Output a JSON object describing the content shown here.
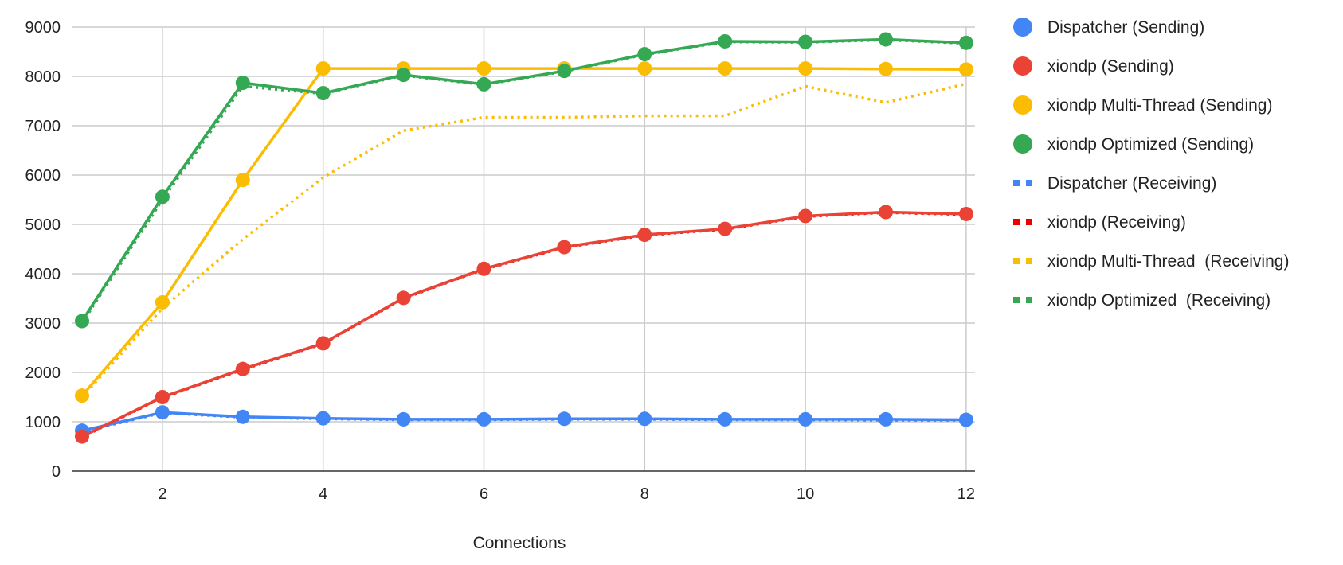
{
  "chart_data": {
    "type": "line",
    "title": "",
    "xlabel": "Connections",
    "ylabel": "",
    "xlim": [
      1,
      12
    ],
    "ylim": [
      0,
      9000
    ],
    "x_ticks": [
      2,
      4,
      6,
      8,
      10,
      12
    ],
    "y_ticks": [
      0,
      1000,
      2000,
      3000,
      4000,
      5000,
      6000,
      7000,
      8000,
      9000
    ],
    "grid": true,
    "legend_position": "right",
    "x": [
      1,
      2,
      3,
      4,
      5,
      6,
      7,
      8,
      9,
      10,
      11,
      12
    ],
    "series": [
      {
        "name": "Dispatcher (Sending)",
        "color": "#4285F4",
        "style": "solid-markers",
        "values": [
          820,
          1190,
          1100,
          1070,
          1050,
          1050,
          1060,
          1060,
          1050,
          1050,
          1050,
          1040
        ]
      },
      {
        "name": "xiondp (Sending)",
        "color": "#EA4335",
        "style": "solid-markers",
        "values": [
          700,
          1500,
          2070,
          2590,
          3510,
          4100,
          4540,
          4790,
          4910,
          5170,
          5250,
          5210
        ]
      },
      {
        "name": "xiondp Multi-Thread (Sending)",
        "color": "#FBBC04",
        "style": "solid-markers",
        "values": [
          1530,
          3420,
          5900,
          8160,
          8160,
          8160,
          8160,
          8160,
          8160,
          8160,
          8150,
          8140
        ]
      },
      {
        "name": "xiondp Optimized (Sending)",
        "color": "#34A853",
        "style": "solid-markers",
        "values": [
          3040,
          5560,
          7870,
          7660,
          8030,
          7840,
          8110,
          8450,
          8710,
          8700,
          8750,
          8680
        ]
      },
      {
        "name": "Dispatcher (Receiving)",
        "color": "#4285F4",
        "style": "dotted",
        "values": [
          800,
          1180,
          1090,
          1060,
          1040,
          1040,
          1050,
          1050,
          1040,
          1040,
          1030,
          1030
        ]
      },
      {
        "name": "xiondp (Receiving)",
        "color": "#EA0000",
        "style": "dotted",
        "values": [
          690,
          1490,
          2060,
          2580,
          3500,
          4090,
          4530,
          4780,
          4900,
          5160,
          5240,
          5200
        ]
      },
      {
        "name": "xiondp Multi-Thread  (Receiving)",
        "color": "#FBBC04",
        "style": "dotted",
        "values": [
          1500,
          3300,
          4700,
          5950,
          6900,
          7170,
          7170,
          7200,
          7200,
          7800,
          7470,
          7850
        ]
      },
      {
        "name": "xiondp Optimized  (Receiving)",
        "color": "#34A853",
        "style": "dotted",
        "values": [
          3000,
          5500,
          7800,
          7650,
          8020,
          7830,
          8100,
          8440,
          8700,
          8690,
          8740,
          8670
        ]
      }
    ]
  }
}
